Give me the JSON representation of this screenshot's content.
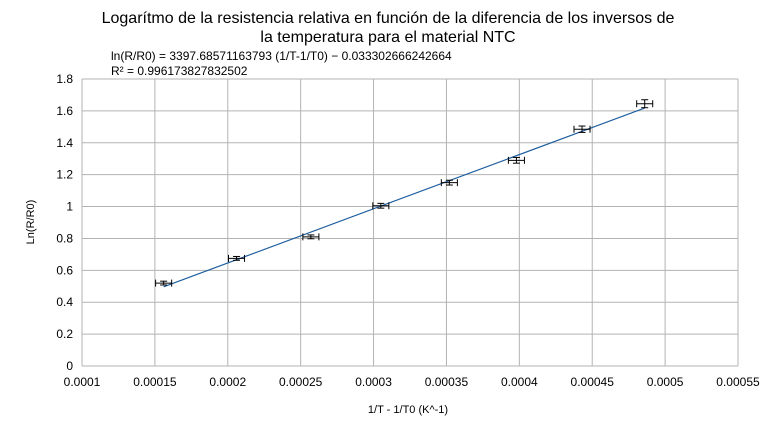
{
  "chart_data": {
    "type": "scatter",
    "title_lines": [
      "Logarítmo de la resistencia relativa en función de la diferencia de los inversos de",
      "la temperatura para el material NTC"
    ],
    "trendline_equation": "ln(R/R0) = 3397.68571163793 (1/T-1/T0) − 0.033302666242664",
    "r_squared_label": "R² = 0.996173827832502",
    "trendline": {
      "slope": 3397.68571163793,
      "intercept": -0.033302666242664
    },
    "xlabel": "1/T - 1/T0 (K^-1)",
    "ylabel": "Ln(R/R0)",
    "xlim": [
      0.0001,
      0.00055
    ],
    "ylim": [
      0,
      1.8
    ],
    "x_ticks": [
      0.0001,
      0.00015,
      0.0002,
      0.00025,
      0.0003,
      0.00035,
      0.0004,
      0.00045,
      0.0005,
      0.00055
    ],
    "x_tick_labels": [
      "0.0001",
      "0.00015",
      "0.0002",
      "0.00025",
      "0.0003",
      "0.00035",
      "0.0004",
      "0.00045",
      "0.0005",
      "0.00055"
    ],
    "y_ticks": [
      0,
      0.2,
      0.4,
      0.6,
      0.8,
      1,
      1.2,
      1.4,
      1.6,
      1.8
    ],
    "y_tick_labels": [
      "0",
      "0.2",
      "0.4",
      "0.6",
      "0.8",
      "1",
      "1.2",
      "1.4",
      "1.6",
      "1.8"
    ],
    "grid": true,
    "legend": "none",
    "points": [
      {
        "x": 0.000156,
        "y": 0.52,
        "xerr": 5.5e-06,
        "yerr": 0.012
      },
      {
        "x": 0.000206,
        "y": 0.675,
        "xerr": 5.5e-06,
        "yerr": 0.012
      },
      {
        "x": 0.000257,
        "y": 0.81,
        "xerr": 5.5e-06,
        "yerr": 0.012
      },
      {
        "x": 0.000305,
        "y": 1.005,
        "xerr": 5.5e-06,
        "yerr": 0.015
      },
      {
        "x": 0.000352,
        "y": 1.15,
        "xerr": 5.5e-06,
        "yerr": 0.015
      },
      {
        "x": 0.000398,
        "y": 1.29,
        "xerr": 5.5e-06,
        "yerr": 0.018
      },
      {
        "x": 0.000443,
        "y": 1.485,
        "xerr": 5.5e-06,
        "yerr": 0.02
      },
      {
        "x": 0.000486,
        "y": 1.645,
        "xerr": 5.5e-06,
        "yerr": 0.025
      }
    ],
    "colors": {
      "trendline": "#1f5f9f",
      "gridline": "#b3b3b3",
      "errorbar": "#000000"
    }
  }
}
